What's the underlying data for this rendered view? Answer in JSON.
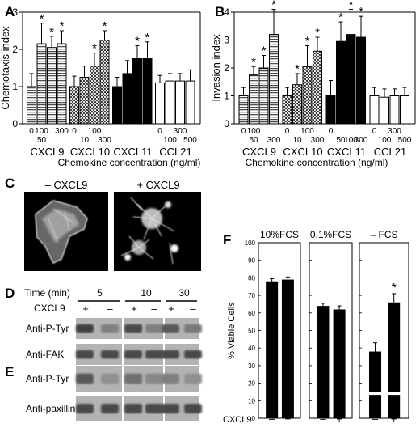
{
  "panels": {
    "A": "A",
    "B": "B",
    "C": "C",
    "D": "D",
    "E": "E",
    "F": "F"
  },
  "chart_data": [
    {
      "id": "A",
      "type": "bar",
      "ylabel": "Chemotaxis index",
      "xlabel": "Chemokine concentration (ng/ml)",
      "ylim": [
        0,
        3
      ],
      "yticks": [
        "0",
        "1",
        "2",
        "3"
      ],
      "groups": [
        {
          "name": "CXCL9",
          "fill": "hlines",
          "ticks_top": [
            "0",
            "100",
            "",
            "300"
          ],
          "ticks_bottom": [
            "",
            "50",
            "",
            ""
          ],
          "values": [
            1.0,
            2.15,
            2.05,
            2.15
          ],
          "errors": [
            0.35,
            0.55,
            0.3,
            0.35
          ],
          "sig": [
            false,
            true,
            true,
            true
          ]
        },
        {
          "name": "CXCL10",
          "fill": "cross",
          "ticks_top": [
            "0",
            "",
            "100",
            ""
          ],
          "ticks_bottom": [
            "",
            "10",
            "",
            "300"
          ],
          "values": [
            1.0,
            1.25,
            1.55,
            2.25
          ],
          "errors": [
            0.28,
            0.3,
            0.35,
            0.25
          ],
          "sig": [
            false,
            false,
            true,
            true
          ]
        },
        {
          "name": "CXCL11",
          "fill": "solid",
          "ticks_top": [
            "",
            "",
            "",
            ""
          ],
          "ticks_bottom": [
            "",
            "",
            "",
            ""
          ],
          "values": [
            1.0,
            1.35,
            1.75,
            1.75
          ],
          "errors": [
            0.25,
            0.35,
            0.35,
            0.45
          ],
          "sig": [
            false,
            false,
            true,
            true
          ]
        },
        {
          "name": "CCL21",
          "fill": "white",
          "ticks_top": [
            "0",
            "",
            "300",
            ""
          ],
          "ticks_bottom": [
            "",
            "100",
            "",
            "500"
          ],
          "values": [
            1.1,
            1.15,
            1.15,
            1.15
          ],
          "errors": [
            0.2,
            0.2,
            0.2,
            0.3
          ],
          "sig": [
            false,
            false,
            false,
            false
          ]
        }
      ]
    },
    {
      "id": "B",
      "type": "bar",
      "ylabel": "Invasion index",
      "xlabel": "Chemokine concentration (ng/ml)",
      "ylim": [
        0,
        4
      ],
      "yticks": [
        "0",
        "1",
        "2",
        "3",
        "4"
      ],
      "groups": [
        {
          "name": "CXCL9",
          "fill": "hlines",
          "ticks_top": [
            "0",
            "100",
            "",
            ""
          ],
          "ticks_bottom": [
            "",
            "50",
            "",
            "300"
          ],
          "values": [
            1.0,
            1.75,
            2.0,
            3.2
          ],
          "errors": [
            0.3,
            0.3,
            0.45,
            0.9
          ],
          "sig": [
            false,
            true,
            true,
            true
          ]
        },
        {
          "name": "CXCL10",
          "fill": "cross",
          "ticks_top": [
            "0",
            "",
            "100",
            ""
          ],
          "ticks_bottom": [
            "",
            "10",
            "",
            "300"
          ],
          "values": [
            1.0,
            1.4,
            2.05,
            2.6
          ],
          "errors": [
            0.3,
            0.4,
            0.75,
            0.5
          ],
          "sig": [
            false,
            true,
            true,
            true
          ]
        },
        {
          "name": "CXCL11",
          "fill": "solid",
          "ticks_top": [
            "0",
            "",
            "",
            ""
          ],
          "ticks_bottom": [
            "",
            "50",
            "100",
            "300"
          ],
          "values": [
            1.0,
            2.95,
            3.2,
            3.1
          ],
          "errors": [
            0.55,
            0.7,
            0.9,
            0.75
          ],
          "sig": [
            false,
            true,
            true,
            true
          ]
        },
        {
          "name": "CCL21",
          "fill": "white",
          "ticks_top": [
            "0",
            "",
            "300",
            ""
          ],
          "ticks_bottom": [
            "",
            "100",
            "",
            "500"
          ],
          "values": [
            1.0,
            0.95,
            1.0,
            1.0
          ],
          "errors": [
            0.3,
            0.3,
            0.25,
            0.3
          ],
          "sig": [
            false,
            false,
            false,
            false
          ]
        }
      ]
    },
    {
      "id": "F",
      "type": "bar",
      "ylabel": "% Viable Cells",
      "xlabel": "CXCL9",
      "ylim": [
        0,
        100
      ],
      "yticks": [
        "0",
        "10",
        "20",
        "30",
        "40",
        "50",
        "60",
        "70",
        "80",
        "90",
        "100"
      ],
      "categories": [
        "–",
        "+"
      ],
      "subplots": [
        {
          "title": "10%FCS",
          "values": [
            78,
            79
          ],
          "errors": [
            1.5,
            1.5
          ],
          "sig": [
            false,
            false
          ]
        },
        {
          "title": "0.1%FCS",
          "values": [
            64,
            62
          ],
          "errors": [
            1.5,
            2.0
          ],
          "sig": [
            false,
            false
          ]
        },
        {
          "title": "– FCS",
          "values": [
            38,
            66
          ],
          "errors": [
            5,
            5
          ],
          "sig": [
            false,
            true
          ],
          "break_band": true
        }
      ]
    }
  ],
  "micrographs": {
    "minus_label": "– CXCL9",
    "plus_label": "+ CXCL9"
  },
  "blots": {
    "time_label": "Time (min)",
    "cxcl9_label": "CXCL9",
    "times": [
      "5",
      "10",
      "30"
    ],
    "signs": [
      "+",
      "–"
    ],
    "D": {
      "rows": [
        {
          "label": "Anti-P-Tyr",
          "bands": [
            0.85,
            0.45,
            0.8,
            0.45,
            0.7,
            0.5
          ]
        },
        {
          "label": "Anti-FAK",
          "bands": [
            0.8,
            0.8,
            0.8,
            0.8,
            0.8,
            0.8
          ]
        }
      ]
    },
    "E": {
      "rows": [
        {
          "label": "Anti-P-Tyr",
          "bands": [
            0.7,
            0.35,
            0.55,
            0.4,
            0.45,
            0.35
          ]
        },
        {
          "label": "Anti-paxillin",
          "bands": [
            0.8,
            0.8,
            0.8,
            0.8,
            0.8,
            0.8
          ]
        }
      ]
    }
  }
}
